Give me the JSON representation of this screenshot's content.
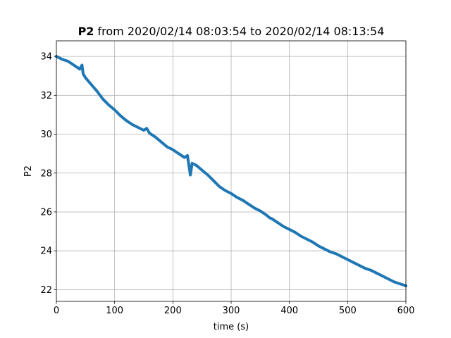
{
  "chart_data": {
    "type": "line",
    "title": {
      "bold": "P2",
      "rest": " from 2020/02/14 08:03:54 to 2020/02/14 08:13:54"
    },
    "xlabel": "time (s)",
    "ylabel": "P2",
    "xlim": [
      0,
      600
    ],
    "ylim": [
      21.4,
      34.8
    ],
    "xticks": [
      0,
      100,
      200,
      300,
      400,
      500,
      600
    ],
    "yticks": [
      22,
      24,
      26,
      28,
      30,
      32,
      34
    ],
    "grid": true,
    "series": [
      {
        "color": "#1f77b4",
        "x": [
          0,
          10,
          20,
          30,
          40,
          44,
          46,
          50,
          60,
          70,
          80,
          90,
          100,
          110,
          120,
          130,
          140,
          150,
          155,
          160,
          170,
          180,
          190,
          200,
          210,
          220,
          225,
          228,
          230,
          233,
          240,
          250,
          260,
          270,
          280,
          290,
          300,
          310,
          320,
          330,
          340,
          350,
          360,
          366,
          370,
          380,
          390,
          400,
          410,
          420,
          430,
          440,
          450,
          460,
          470,
          480,
          490,
          500,
          510,
          520,
          530,
          540,
          550,
          560,
          570,
          580,
          590,
          600
        ],
        "y": [
          34.0,
          33.85,
          33.75,
          33.55,
          33.35,
          33.55,
          33.1,
          32.9,
          32.55,
          32.2,
          31.8,
          31.5,
          31.25,
          30.95,
          30.7,
          30.5,
          30.35,
          30.2,
          30.3,
          30.05,
          29.85,
          29.6,
          29.35,
          29.2,
          29.0,
          28.8,
          28.9,
          28.3,
          27.9,
          28.5,
          28.4,
          28.15,
          27.9,
          27.6,
          27.3,
          27.1,
          26.95,
          26.75,
          26.6,
          26.4,
          26.2,
          26.05,
          25.85,
          25.7,
          25.65,
          25.45,
          25.25,
          25.1,
          24.95,
          24.75,
          24.6,
          24.45,
          24.25,
          24.1,
          23.95,
          23.85,
          23.7,
          23.55,
          23.4,
          23.25,
          23.1,
          23.0,
          22.85,
          22.7,
          22.55,
          22.4,
          22.3,
          22.2
        ]
      }
    ]
  }
}
